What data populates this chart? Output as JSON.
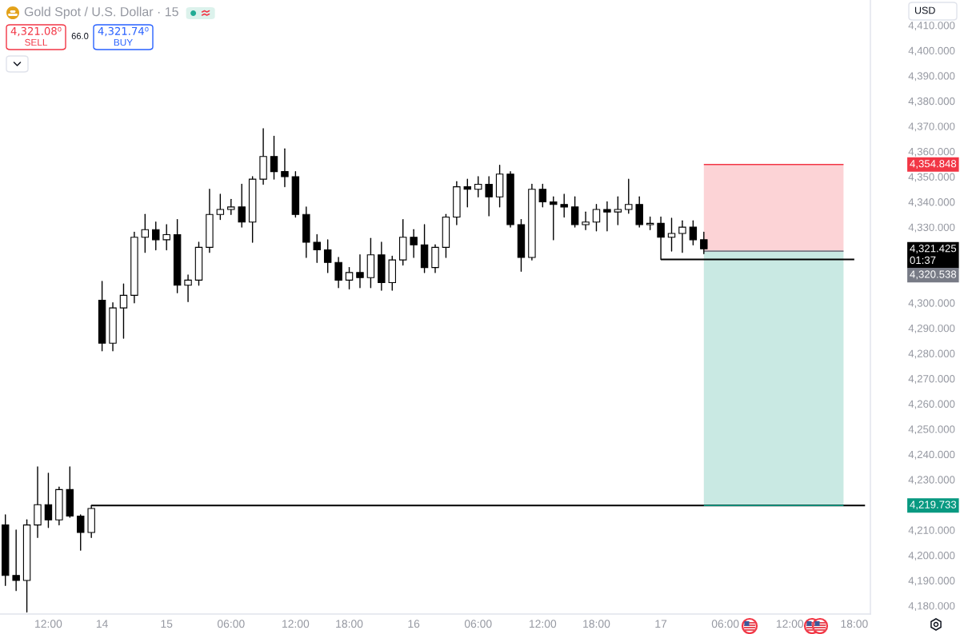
{
  "chart_data": {
    "type": "candlestick",
    "title": "Gold Spot / U.S. Dollar · 15",
    "categories": [
      null,
      null,
      null,
      null,
      "12:00",
      null,
      null,
      null,
      null,
      "14",
      null,
      null,
      null,
      null,
      null,
      "15",
      null,
      null,
      null,
      null,
      null,
      "06:00",
      null,
      null,
      null,
      null,
      null,
      "12:00",
      null,
      null,
      null,
      null,
      "18:00",
      null,
      null,
      null,
      null,
      null,
      "16",
      null,
      null,
      null,
      null,
      null,
      "06:00",
      null,
      null,
      null,
      null,
      null,
      "12:00",
      null,
      null,
      null,
      null,
      "18:00",
      null,
      null,
      null,
      null,
      null,
      "17",
      null,
      null,
      null,
      null,
      null,
      "06:00",
      null,
      null,
      null,
      null,
      null,
      "12:00",
      null,
      null,
      null,
      null,
      null,
      "18:00",
      null
    ],
    "ohlc": [
      [
        4212,
        4216,
        4188,
        4192
      ],
      [
        4192,
        4210,
        4186,
        4190
      ],
      [
        4190,
        4214,
        4177.5,
        4212
      ],
      [
        4212,
        4235,
        4207,
        4220
      ],
      [
        4220,
        4232.5,
        4211,
        4214
      ],
      [
        4214,
        4227,
        4212,
        4226
      ],
      [
        4226,
        4235,
        4215,
        4215.5
      ],
      [
        4215.5,
        4216,
        4202,
        4209
      ],
      [
        4209,
        4219.7,
        4207,
        4218.5
      ],
      [
        4301,
        4308.5,
        4281,
        4284
      ],
      [
        4284,
        4300,
        4281,
        4298
      ],
      [
        4298,
        4307.5,
        4286,
        4303
      ],
      [
        4303,
        4328,
        4300,
        4326
      ],
      [
        4326,
        4335,
        4320,
        4329
      ],
      [
        4329,
        4332,
        4321,
        4325
      ],
      [
        4325,
        4331,
        4321,
        4327
      ],
      [
        4327,
        4333,
        4304,
        4307
      ],
      [
        4307,
        4311,
        4300.5,
        4309
      ],
      [
        4309,
        4324,
        4307,
        4322
      ],
      [
        4322,
        4345,
        4320,
        4335
      ],
      [
        4335,
        4343,
        4333,
        4337
      ],
      [
        4337,
        4341,
        4335,
        4338
      ],
      [
        4338,
        4347,
        4330,
        4332
      ],
      [
        4332,
        4350,
        4324,
        4349
      ],
      [
        4349,
        4369,
        4347,
        4358
      ],
      [
        4358,
        4366,
        4349,
        4352
      ],
      [
        4352,
        4361,
        4346,
        4350
      ],
      [
        4350,
        4352,
        4334,
        4335
      ],
      [
        4335,
        4338,
        4318,
        4324
      ],
      [
        4324,
        4327,
        4316,
        4321
      ],
      [
        4321,
        4325,
        4312,
        4316
      ],
      [
        4316,
        4318,
        4306,
        4309
      ],
      [
        4309,
        4314,
        4305.5,
        4312
      ],
      [
        4312,
        4319,
        4306,
        4310
      ],
      [
        4310,
        4325.5,
        4306,
        4319
      ],
      [
        4319,
        4324,
        4305,
        4308
      ],
      [
        4308,
        4318.5,
        4305,
        4317
      ],
      [
        4317,
        4333,
        4315,
        4326
      ],
      [
        4326,
        4329,
        4318,
        4323
      ],
      [
        4323,
        4331,
        4312,
        4314
      ],
      [
        4314,
        4323,
        4312,
        4322
      ],
      [
        4322,
        4335,
        4318,
        4334
      ],
      [
        4334,
        4348,
        4331,
        4346
      ],
      [
        4346,
        4349,
        4338,
        4345
      ],
      [
        4345,
        4350,
        4342,
        4347
      ],
      [
        4347,
        4350,
        4334.5,
        4342
      ],
      [
        4342,
        4354.5,
        4338,
        4351
      ],
      [
        4351,
        4352,
        4330,
        4331
      ],
      [
        4331,
        4333,
        4312.5,
        4318
      ],
      [
        4318,
        4347,
        4317,
        4345
      ],
      [
        4345,
        4347,
        4338,
        4340
      ],
      [
        4340,
        4342,
        4325,
        4339
      ],
      [
        4339,
        4343,
        4334,
        4338
      ],
      [
        4338,
        4342,
        4330,
        4331
      ],
      [
        4331,
        4336,
        4329,
        4332
      ],
      [
        4332,
        4339,
        4328.5,
        4337
      ],
      [
        4337,
        4340,
        4328.5,
        4336
      ],
      [
        4336,
        4342,
        4331,
        4337
      ],
      [
        4337,
        4349,
        4335.5,
        4339
      ],
      [
        4339,
        4342,
        4330,
        4331
      ],
      [
        4331,
        4334,
        4329,
        4331.5
      ],
      [
        4331.5,
        4334,
        4317.2,
        4326
      ],
      [
        4326,
        4333.5,
        4320.5,
        4327.5
      ],
      [
        4327.5,
        4332.5,
        4320,
        4330
      ],
      [
        4330,
        4332.5,
        4323,
        4325
      ],
      [
        4325,
        4328,
        4319.5,
        4321.425
      ],
      null,
      null,
      null,
      null,
      null,
      null,
      null,
      null,
      null,
      null,
      null,
      null,
      null,
      null,
      null
    ],
    "color": "#000000",
    "colors": [
      "#000000",
      "#000000",
      "#ffffff",
      "#ffffff",
      "#000000",
      "#ffffff",
      "#000000",
      "#000000",
      "#ffffff",
      "#000000",
      "#ffffff",
      "#ffffff",
      "#ffffff",
      "#ffffff",
      "#000000",
      "#ffffff",
      "#000000",
      "#ffffff",
      "#ffffff",
      "#ffffff",
      "#ffffff",
      "#ffffff",
      "#000000",
      "#ffffff",
      "#ffffff",
      "#000000",
      "#000000",
      "#000000",
      "#000000",
      "#000000",
      "#000000",
      "#000000",
      "#ffffff",
      "#000000",
      "#ffffff",
      "#000000",
      "#ffffff",
      "#ffffff",
      "#000000",
      "#000000",
      "#ffffff",
      "#ffffff",
      "#ffffff",
      "#000000",
      "#ffffff",
      "#000000",
      "#ffffff",
      "#000000",
      "#000000",
      "#ffffff",
      "#000000",
      "#000000",
      "#000000",
      "#000000",
      "#ffffff",
      "#ffffff",
      "#000000",
      "#ffffff",
      "#ffffff",
      "#000000",
      "#ffffff",
      "#000000",
      "#ffffff",
      "#ffffff",
      "#000000",
      "#000000",
      null,
      null,
      null,
      null,
      null,
      null,
      null,
      null,
      null,
      null,
      null,
      null,
      null,
      null,
      null
    ],
    "series": [
      {
        "type": "line",
        "color": "#f23645",
        "values": [
          null,
          null,
          null,
          null,
          null,
          null,
          null,
          null,
          null,
          null,
          null,
          null,
          null,
          null,
          null,
          null,
          null,
          null,
          null,
          null,
          null,
          null,
          null,
          null,
          null,
          null,
          null,
          null,
          null,
          null,
          null,
          null,
          null,
          null,
          null,
          null,
          null,
          null,
          null,
          null,
          null,
          null,
          null,
          null,
          null,
          null,
          null,
          null,
          null,
          null,
          null,
          null,
          null,
          null,
          null,
          null,
          null,
          null,
          null,
          null,
          null,
          null,
          null,
          null,
          null,
          4354.8,
          4354.8,
          4354.8,
          4354.8,
          4354.8,
          4354.8,
          4354.8,
          4354.8,
          4354.8,
          4354.8,
          4354.8,
          4354.8,
          4354.8,
          4354.8,
          null,
          null
        ],
        "lower": [
          null,
          null,
          null,
          null,
          null,
          null,
          null,
          null,
          null,
          null,
          null,
          null,
          null,
          null,
          null,
          null,
          null,
          null,
          null,
          null,
          null,
          null,
          null,
          null,
          null,
          null,
          null,
          null,
          null,
          null,
          null,
          null,
          null,
          null,
          null,
          null,
          null,
          null,
          null,
          null,
          null,
          null,
          null,
          null,
          null,
          null,
          null,
          null,
          null,
          null,
          null,
          null,
          null,
          null,
          null,
          null,
          null,
          null,
          null,
          null,
          null,
          null,
          null,
          null,
          null,
          4320.5,
          4320.5,
          4320.5,
          4320.5,
          4320.5,
          4320.5,
          4320.5,
          4320.5,
          4320.5,
          4320.5,
          4320.5,
          4320.5,
          4320.5,
          4320.5,
          null,
          null
        ],
        "upper": [
          null,
          null,
          null,
          null,
          null,
          null,
          null,
          null,
          null,
          null,
          null,
          null,
          null,
          null,
          null,
          null,
          null,
          null,
          null,
          null,
          null,
          null,
          null,
          null,
          null,
          null,
          null,
          null,
          null,
          null,
          null,
          null,
          null,
          null,
          null,
          null,
          null,
          null,
          null,
          null,
          null,
          null,
          null,
          null,
          null,
          null,
          null,
          null,
          null,
          null,
          null,
          null,
          null,
          null,
          null,
          null,
          null,
          null,
          null,
          null,
          null,
          null,
          null,
          null,
          null,
          4354.8,
          4354.8,
          4354.8,
          4354.8,
          4354.8,
          4354.8,
          4354.8,
          4354.8,
          4354.8,
          4354.8,
          4354.8,
          4354.8,
          4354.8,
          4354.8,
          null,
          null
        ]
      },
      {
        "type": "line",
        "color": "#089981",
        "values": [
          null,
          null,
          null,
          null,
          null,
          null,
          null,
          null,
          null,
          null,
          null,
          null,
          null,
          null,
          null,
          null,
          null,
          null,
          null,
          null,
          null,
          null,
          null,
          null,
          null,
          null,
          null,
          null,
          null,
          null,
          null,
          null,
          null,
          null,
          null,
          null,
          null,
          null,
          null,
          null,
          null,
          null,
          null,
          null,
          null,
          null,
          null,
          null,
          null,
          null,
          null,
          null,
          null,
          null,
          null,
          null,
          null,
          null,
          null,
          null,
          null,
          null,
          null,
          null,
          null,
          4219.7,
          4219.7,
          4219.7,
          4219.7,
          4219.7,
          4219.7,
          4219.7,
          4219.7,
          4219.7,
          4219.7,
          4219.7,
          4219.7,
          4219.7,
          4219.7,
          null,
          null
        ],
        "lower": [
          null,
          null,
          null,
          null,
          null,
          null,
          null,
          null,
          null,
          null,
          null,
          null,
          null,
          null,
          null,
          null,
          null,
          null,
          null,
          null,
          null,
          null,
          null,
          null,
          null,
          null,
          null,
          null,
          null,
          null,
          null,
          null,
          null,
          null,
          null,
          null,
          null,
          null,
          null,
          null,
          null,
          null,
          null,
          null,
          null,
          null,
          null,
          null,
          null,
          null,
          null,
          null,
          null,
          null,
          null,
          null,
          null,
          null,
          null,
          null,
          null,
          null,
          null,
          null,
          null,
          4219.7,
          4219.7,
          4219.7,
          4219.7,
          4219.7,
          4219.7,
          4219.7,
          4219.7,
          4219.7,
          4219.7,
          4219.7,
          4219.7,
          4219.7,
          4219.7,
          null,
          null
        ],
        "upper": [
          null,
          null,
          null,
          null,
          null,
          null,
          null,
          null,
          null,
          null,
          null,
          null,
          null,
          null,
          null,
          null,
          null,
          null,
          null,
          null,
          null,
          null,
          null,
          null,
          null,
          null,
          null,
          null,
          null,
          null,
          null,
          null,
          null,
          null,
          null,
          null,
          null,
          null,
          null,
          null,
          null,
          null,
          null,
          null,
          null,
          null,
          null,
          null,
          null,
          null,
          null,
          null,
          null,
          null,
          null,
          null,
          null,
          null,
          null,
          null,
          null,
          null,
          null,
          null,
          null,
          4320.5,
          4320.5,
          4320.5,
          4320.5,
          4320.5,
          4320.5,
          4320.5,
          4320.5,
          4320.5,
          4320.5,
          4320.5,
          4320.5,
          4320.5,
          4320.5,
          null,
          null
        ]
      },
      {
        "type": "line",
        "color": "#787b86",
        "values": [
          null,
          null,
          null,
          null,
          null,
          null,
          null,
          null,
          null,
          null,
          null,
          null,
          null,
          null,
          null,
          null,
          null,
          null,
          null,
          null,
          null,
          null,
          null,
          null,
          null,
          null,
          null,
          null,
          null,
          null,
          null,
          null,
          null,
          null,
          null,
          null,
          null,
          null,
          null,
          null,
          null,
          null,
          null,
          null,
          null,
          null,
          null,
          null,
          null,
          null,
          null,
          null,
          null,
          null,
          null,
          null,
          null,
          null,
          null,
          null,
          null,
          null,
          null,
          null,
          null,
          4320.5,
          4320.5,
          4320.5,
          4320.5,
          4320.5,
          4320.5,
          4320.5,
          4320.5,
          4320.5,
          4320.5,
          4320.5,
          4320.5,
          4320.5,
          4320.5,
          null,
          null
        ]
      },
      {
        "type": "line",
        "color": "#000000",
        "values": [
          null,
          null,
          null,
          null,
          null,
          null,
          null,
          null,
          4219.7,
          4219.7,
          4219.7,
          4219.7,
          4219.7,
          4219.7,
          4219.7,
          4219.7,
          4219.7,
          4219.7,
          4219.7,
          4219.7,
          4219.7,
          4219.7,
          4219.7,
          4219.7,
          4219.7,
          4219.7,
          4219.7,
          4219.7,
          4219.7,
          4219.7,
          4219.7,
          4219.7,
          4219.7,
          4219.7,
          4219.7,
          4219.7,
          4219.7,
          4219.7,
          4219.7,
          4219.7,
          4219.7,
          4219.7,
          4219.7,
          4219.7,
          4219.7,
          4219.7,
          4219.7,
          4219.7,
          4219.7,
          4219.7,
          4219.7,
          4219.7,
          4219.7,
          4219.7,
          4219.7,
          4219.7,
          4219.7,
          4219.7,
          4219.7,
          4219.7,
          4219.7,
          4219.7,
          4219.7,
          4219.7,
          4219.7,
          null,
          null,
          null,
          null,
          null,
          null,
          null,
          null,
          null,
          null,
          null,
          null,
          null,
          null,
          4219.7,
          4219.7
        ]
      },
      {
        "type": "line",
        "color": "#000000",
        "values": [
          null,
          null,
          null,
          null,
          null,
          null,
          null,
          null,
          null,
          null,
          null,
          null,
          null,
          null,
          null,
          null,
          null,
          null,
          null,
          null,
          null,
          null,
          null,
          null,
          null,
          null,
          null,
          null,
          null,
          null,
          null,
          null,
          null,
          null,
          null,
          null,
          null,
          null,
          null,
          null,
          null,
          null,
          null,
          null,
          null,
          null,
          null,
          null,
          null,
          null,
          null,
          null,
          null,
          null,
          null,
          null,
          null,
          null,
          null,
          null,
          null,
          4317.2,
          4317.2,
          4317.2,
          4317.2,
          4317.2,
          4317.2,
          4317.2,
          4317.2,
          4317.2,
          4317.2,
          4317.2,
          4317.2,
          4317.2,
          4317.2,
          4317.2,
          4317.2,
          4317.2,
          4317.2,
          4317.2,
          null
        ]
      }
    ],
    "ylim": [
      4176.7,
      4420
    ],
    "yticks": [
      {
        "value": 4180,
        "label": "4,180.000"
      },
      {
        "value": 4190,
        "label": "4,190.000"
      },
      {
        "value": 4200,
        "label": "4,200.000"
      },
      {
        "value": 4210,
        "label": "4,210.000"
      },
      {
        "value": 4230,
        "label": "4,230.000"
      },
      {
        "value": 4240,
        "label": "4,240.000"
      },
      {
        "value": 4250,
        "label": "4,250.000"
      },
      {
        "value": 4260,
        "label": "4,260.000"
      },
      {
        "value": 4270,
        "label": "4,270.000"
      },
      {
        "value": 4280,
        "label": "4,280.000"
      },
      {
        "value": 4290,
        "label": "4,290.000"
      },
      {
        "value": 4300,
        "label": "4,300.000"
      },
      {
        "value": 4330,
        "label": "4,330.000"
      },
      {
        "value": 4340,
        "label": "4,340.000"
      },
      {
        "value": 4350,
        "label": "4,350.000"
      },
      {
        "value": 4360,
        "label": "4,360.000"
      },
      {
        "value": 4370,
        "label": "4,370.000"
      },
      {
        "value": 4380,
        "label": "4,380.000"
      },
      {
        "value": 4390,
        "label": "4,390.000"
      },
      {
        "value": 4400,
        "label": "4,400.000"
      },
      {
        "value": 4410,
        "label": "4,410.000"
      }
    ],
    "annotations": [
      "4,321.08⁰",
      "SELL",
      "66.0",
      "4,321.74⁰",
      "BUY",
      "USD",
      "4,354.848",
      "4,321.425\n01:37",
      "4,320.538",
      "4,219.733"
    ]
  }
}
